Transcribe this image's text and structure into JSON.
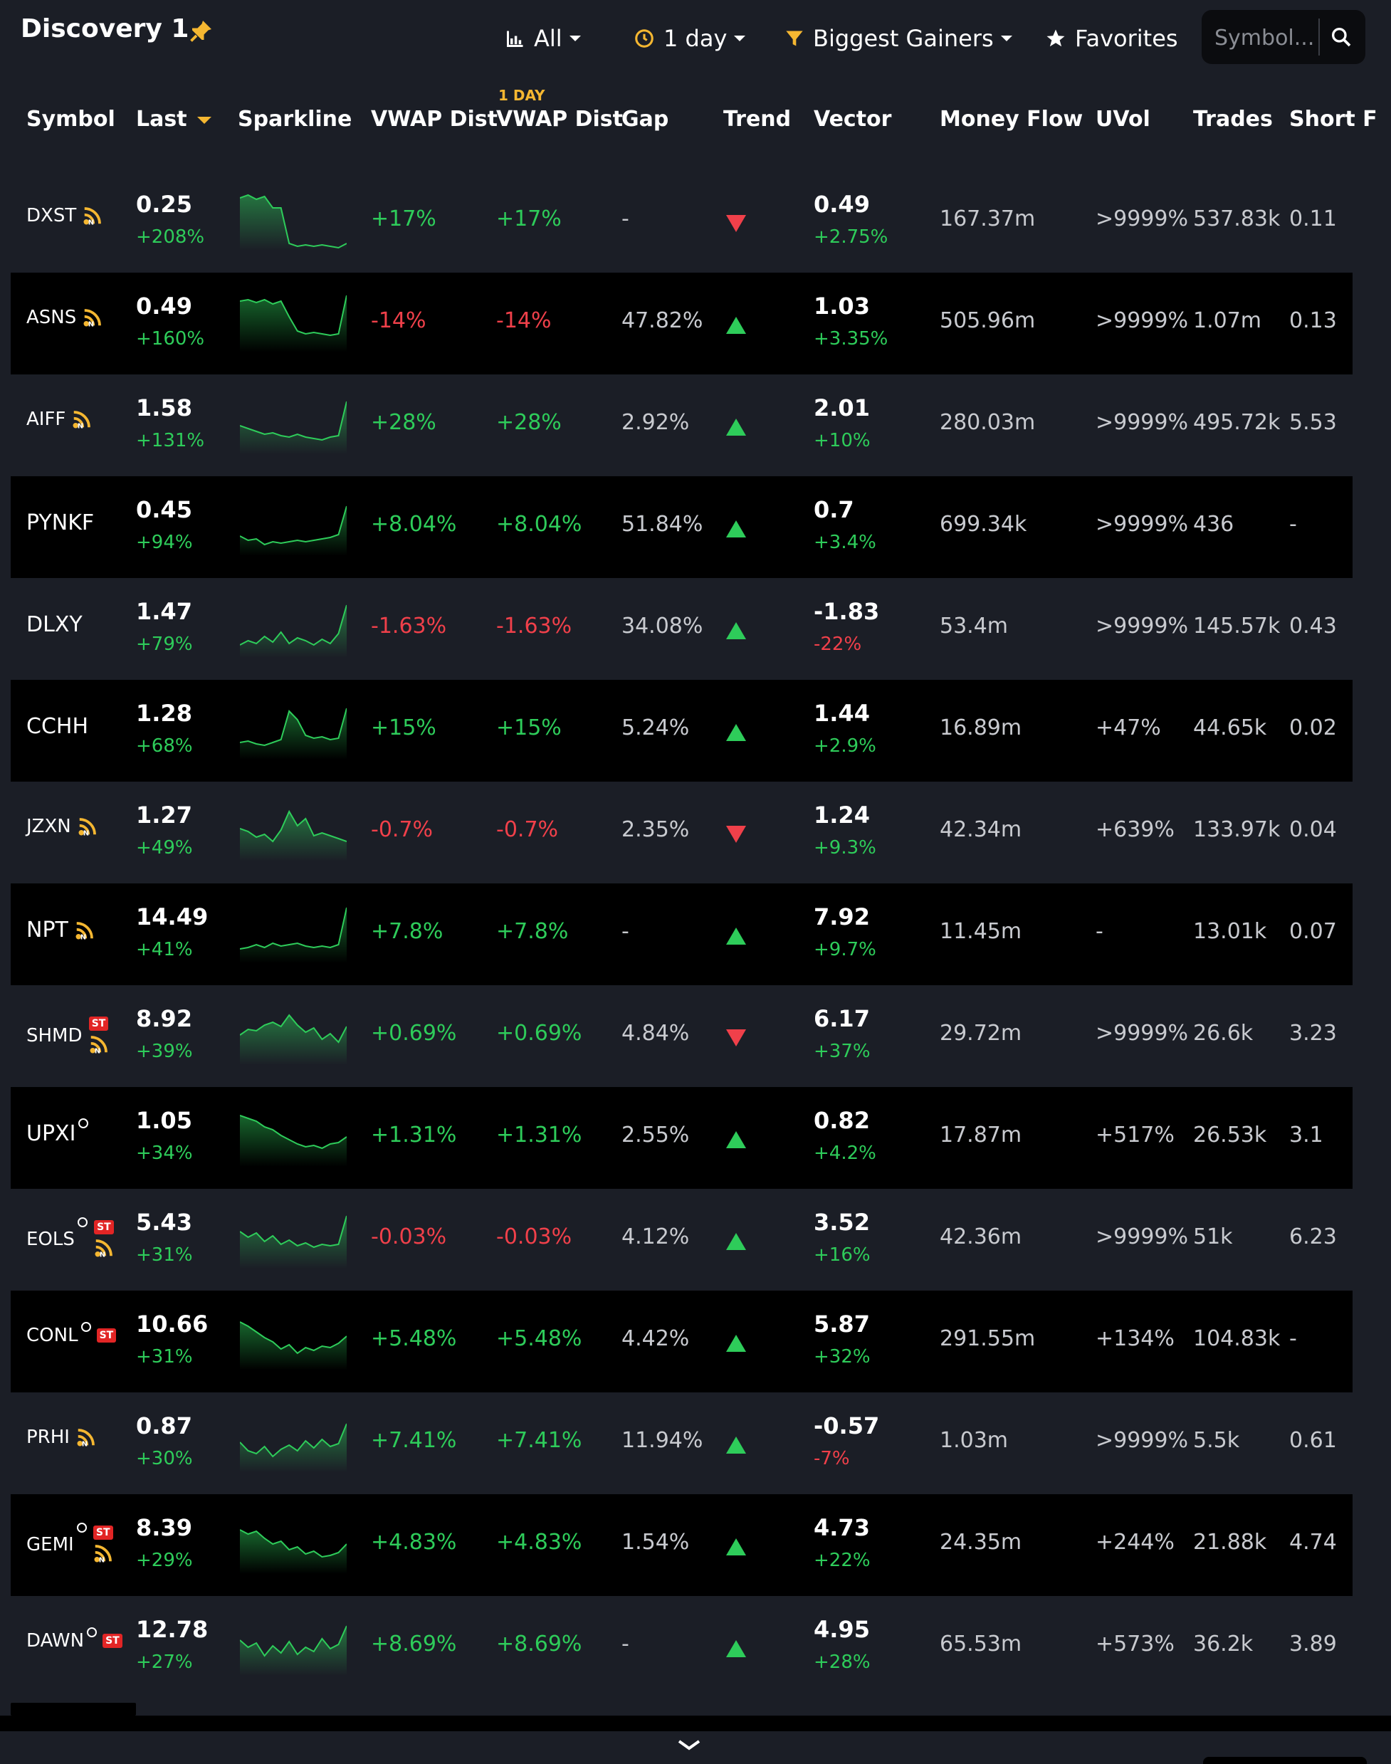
{
  "header": {
    "title": "Discovery 1",
    "filters": {
      "asset": "All",
      "timeframe": "1 day",
      "screen": "Biggest Gainers",
      "favorites": "Favorites"
    },
    "search": {
      "placeholder": "Symbol..."
    }
  },
  "columns": {
    "symbol": "Symbol",
    "last": "Last",
    "sparkline": "Sparkline",
    "vwap_dist": "VWAP Dist",
    "vwap_dist_1d_tag": "1 DAY",
    "vwap_dist_1d": "VWAP Dist",
    "gap": "Gap",
    "trend": "Trend",
    "vector": "Vector",
    "money_flow": "Money Flow",
    "uvol": "UVol",
    "trades": "Trades",
    "short": "Short F"
  },
  "colors": {
    "green": "#2ecc5a",
    "red": "#f0404a",
    "orange": "#f5b731",
    "badge": "#e22525"
  },
  "rows": [
    {
      "symbol": "DXST",
      "small": true,
      "circle": false,
      "st": false,
      "rss": true,
      "last": "0.25",
      "last_chg": "+208%",
      "last_dir": "up",
      "spark": [
        16,
        12,
        18,
        14,
        30,
        30,
        80,
        84,
        82,
        84,
        82,
        84,
        86,
        80
      ],
      "vwap": "+17%",
      "vwap_dir": "up",
      "vwap1d": "+17%",
      "gap": "-",
      "trend": "down",
      "vector": "0.49",
      "vector_chg": "+2.75%",
      "vector_dir": "up",
      "money_flow": "167.37m",
      "uvol": ">9999%",
      "trades": "537.83k",
      "short": "0.11"
    },
    {
      "symbol": "ASNS",
      "small": true,
      "circle": false,
      "st": false,
      "rss": true,
      "last": "0.49",
      "last_chg": "+160%",
      "last_dir": "up",
      "spark": [
        18,
        16,
        20,
        16,
        22,
        18,
        40,
        60,
        64,
        62,
        64,
        66,
        64,
        10
      ],
      "vwap": "-14%",
      "vwap_dir": "down",
      "vwap1d": "-14%",
      "gap": "47.82%",
      "trend": "up",
      "vector": "1.03",
      "vector_chg": "+3.35%",
      "vector_dir": "up",
      "money_flow": "505.96m",
      "uvol": ">9999%",
      "trades": "1.07m",
      "short": "0.13"
    },
    {
      "symbol": "AIFF",
      "small": true,
      "circle": false,
      "st": false,
      "rss": true,
      "last": "1.58",
      "last_chg": "+131%",
      "last_dir": "up",
      "spark": [
        50,
        54,
        58,
        62,
        60,
        64,
        66,
        62,
        66,
        68,
        70,
        66,
        64,
        16
      ],
      "vwap": "+28%",
      "vwap_dir": "up",
      "vwap1d": "+28%",
      "gap": "2.92%",
      "trend": "up",
      "vector": "2.01",
      "vector_chg": "+10%",
      "vector_dir": "up",
      "money_flow": "280.03m",
      "uvol": ">9999%",
      "trades": "495.72k",
      "short": "5.53"
    },
    {
      "symbol": "PYNKF",
      "small": false,
      "circle": false,
      "st": false,
      "rss": false,
      "last": "0.45",
      "last_chg": "+94%",
      "last_dir": "up",
      "spark": [
        62,
        68,
        66,
        74,
        70,
        72,
        70,
        68,
        70,
        68,
        66,
        64,
        60,
        20
      ],
      "vwap": "+8.04%",
      "vwap_dir": "up",
      "vwap1d": "+8.04%",
      "gap": "51.84%",
      "trend": "up",
      "vector": "0.7",
      "vector_chg": "+3.4%",
      "vector_dir": "up",
      "money_flow": "699.34k",
      "uvol": ">9999%",
      "trades": "436",
      "short": "-"
    },
    {
      "symbol": "DLXY",
      "small": false,
      "circle": false,
      "st": false,
      "rss": false,
      "last": "1.47",
      "last_chg": "+79%",
      "last_dir": "up",
      "spark": [
        72,
        66,
        70,
        60,
        68,
        54,
        70,
        62,
        66,
        72,
        64,
        70,
        56,
        16
      ],
      "vwap": "-1.63%",
      "vwap_dir": "down",
      "vwap1d": "-1.63%",
      "gap": "34.08%",
      "trend": "up",
      "vector": "-1.83",
      "vector_chg": "-22%",
      "vector_dir": "down",
      "money_flow": "53.4m",
      "uvol": ">9999%",
      "trades": "145.57k",
      "short": "0.43"
    },
    {
      "symbol": "CCHH",
      "small": false,
      "circle": false,
      "st": false,
      "rss": false,
      "last": "1.28",
      "last_chg": "+68%",
      "last_dir": "up",
      "spark": [
        66,
        64,
        68,
        70,
        66,
        62,
        22,
        34,
        56,
        60,
        58,
        62,
        60,
        18
      ],
      "vwap": "+15%",
      "vwap_dir": "up",
      "vwap1d": "+15%",
      "gap": "5.24%",
      "trend": "up",
      "vector": "1.44",
      "vector_chg": "+2.9%",
      "vector_dir": "up",
      "money_flow": "16.89m",
      "uvol": "+47%",
      "trades": "44.65k",
      "short": "0.02"
    },
    {
      "symbol": "JZXN",
      "small": true,
      "circle": false,
      "st": false,
      "rss": true,
      "last": "1.27",
      "last_chg": "+49%",
      "last_dir": "up",
      "spark": [
        44,
        48,
        56,
        52,
        62,
        46,
        20,
        40,
        30,
        54,
        50,
        54,
        58,
        62
      ],
      "vwap": "-0.7%",
      "vwap_dir": "down",
      "vwap1d": "-0.7%",
      "gap": "2.35%",
      "trend": "down",
      "vector": "1.24",
      "vector_chg": "+9.3%",
      "vector_dir": "up",
      "money_flow": "42.34m",
      "uvol": "+639%",
      "trades": "133.97k",
      "short": "0.04"
    },
    {
      "symbol": "NPT",
      "small": false,
      "circle": false,
      "st": false,
      "rss": true,
      "last": "14.49",
      "last_chg": "+41%",
      "last_dir": "up",
      "spark": [
        70,
        68,
        64,
        68,
        62,
        66,
        64,
        62,
        66,
        68,
        66,
        68,
        64,
        12
      ],
      "vwap": "+7.8%",
      "vwap_dir": "up",
      "vwap1d": "+7.8%",
      "gap": "-",
      "trend": "up",
      "vector": "7.92",
      "vector_chg": "+9.7%",
      "vector_dir": "up",
      "money_flow": "11.45m",
      "uvol": "-",
      "trades": "13.01k",
      "short": "0.07"
    },
    {
      "symbol": "SHMD",
      "small": true,
      "circle": false,
      "st": true,
      "rss": true,
      "last": "8.92",
      "last_chg": "+39%",
      "last_dir": "up",
      "spark": [
        48,
        40,
        42,
        34,
        30,
        36,
        20,
        34,
        44,
        38,
        54,
        46,
        58,
        36
      ],
      "vwap": "+0.69%",
      "vwap_dir": "up",
      "vwap1d": "+0.69%",
      "gap": "4.84%",
      "trend": "down",
      "vector": "6.17",
      "vector_chg": "+37%",
      "vector_dir": "up",
      "money_flow": "29.72m",
      "uvol": ">9999%",
      "trades": "26.6k",
      "short": "3.23"
    },
    {
      "symbol": "UPXI",
      "small": false,
      "circle": true,
      "st": false,
      "rss": false,
      "last": "1.05",
      "last_chg": "+34%",
      "last_dir": "up",
      "spark": [
        18,
        22,
        26,
        34,
        38,
        46,
        52,
        58,
        62,
        60,
        64,
        58,
        56,
        48
      ],
      "vwap": "+1.31%",
      "vwap_dir": "up",
      "vwap1d": "+1.31%",
      "gap": "2.55%",
      "trend": "up",
      "vector": "0.82",
      "vector_chg": "+4.2%",
      "vector_dir": "up",
      "money_flow": "17.87m",
      "uvol": "+517%",
      "trades": "26.53k",
      "short": "3.1"
    },
    {
      "symbol": "EOLS",
      "small": true,
      "circle": true,
      "st": true,
      "rss": true,
      "last": "5.43",
      "last_chg": "+31%",
      "last_dir": "up",
      "spark": [
        38,
        46,
        40,
        52,
        44,
        56,
        50,
        58,
        54,
        60,
        56,
        58,
        56,
        16
      ],
      "vwap": "-0.03%",
      "vwap_dir": "down",
      "vwap1d": "-0.03%",
      "gap": "4.12%",
      "trend": "up",
      "vector": "3.52",
      "vector_chg": "+16%",
      "vector_dir": "up",
      "money_flow": "42.36m",
      "uvol": ">9999%",
      "trades": "51k",
      "short": "6.23"
    },
    {
      "symbol": "CONL",
      "small": true,
      "circle": true,
      "st": true,
      "rss": false,
      "last": "10.66",
      "last_chg": "+31%",
      "last_dir": "up",
      "spark": [
        22,
        28,
        36,
        44,
        50,
        60,
        54,
        66,
        58,
        62,
        56,
        58,
        52,
        42
      ],
      "vwap": "+5.48%",
      "vwap_dir": "up",
      "vwap1d": "+5.48%",
      "gap": "4.42%",
      "trend": "up",
      "vector": "5.87",
      "vector_chg": "+32%",
      "vector_dir": "up",
      "money_flow": "291.55m",
      "uvol": "+134%",
      "trades": "104.83k",
      "short": "-"
    },
    {
      "symbol": "PRHI",
      "small": true,
      "circle": false,
      "st": false,
      "rss": true,
      "last": "0.87",
      "last_chg": "+30%",
      "last_dir": "up",
      "spark": [
        48,
        60,
        64,
        54,
        68,
        58,
        52,
        60,
        46,
        56,
        44,
        54,
        50,
        22
      ],
      "vwap": "+7.41%",
      "vwap_dir": "up",
      "vwap1d": "+7.41%",
      "gap": "11.94%",
      "trend": "up",
      "vector": "-0.57",
      "vector_chg": "-7%",
      "vector_dir": "down",
      "money_flow": "1.03m",
      "uvol": ">9999%",
      "trades": "5.5k",
      "short": "0.61"
    },
    {
      "symbol": "GEMI",
      "small": true,
      "circle": true,
      "st": true,
      "rss": true,
      "last": "8.39",
      "last_chg": "+29%",
      "last_dir": "up",
      "spark": [
        28,
        34,
        30,
        40,
        48,
        44,
        56,
        52,
        62,
        58,
        66,
        64,
        60,
        48
      ],
      "vwap": "+4.83%",
      "vwap_dir": "up",
      "vwap1d": "+4.83%",
      "gap": "1.54%",
      "trend": "up",
      "vector": "4.73",
      "vector_chg": "+22%",
      "vector_dir": "up",
      "money_flow": "24.35m",
      "uvol": "+244%",
      "trades": "21.88k",
      "short": "4.74"
    },
    {
      "symbol": "DAWN",
      "small": true,
      "circle": true,
      "st": true,
      "rss": false,
      "last": "12.78",
      "last_chg": "+27%",
      "last_dir": "up",
      "spark": [
        40,
        50,
        44,
        62,
        48,
        58,
        42,
        60,
        50,
        56,
        38,
        52,
        46,
        20
      ],
      "vwap": "+8.69%",
      "vwap_dir": "up",
      "vwap1d": "+8.69%",
      "gap": "-",
      "trend": "up",
      "vector": "4.95",
      "vector_chg": "+28%",
      "vector_dir": "up",
      "money_flow": "65.53m",
      "uvol": "+573%",
      "trades": "36.2k",
      "short": "3.89"
    }
  ]
}
